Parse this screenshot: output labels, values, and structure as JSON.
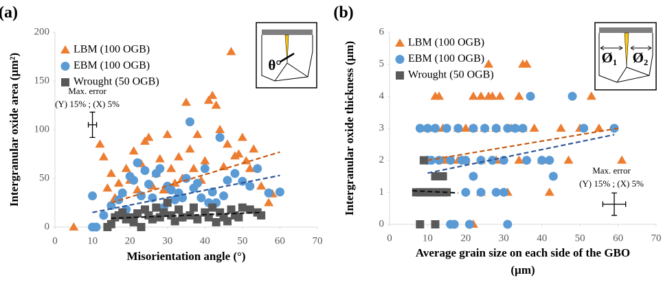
{
  "chart_data": [
    {
      "type": "scatter",
      "title": "(a)",
      "xlabel": "Misorientation angle (°)",
      "ylabel": "Intergranular oxide area (µm²)",
      "xlim": [
        0,
        70
      ],
      "xticks": [
        0,
        10,
        20,
        30,
        40,
        50,
        60,
        70
      ],
      "ylim": [
        0,
        200
      ],
      "yticks": [
        0,
        50,
        100,
        150,
        200
      ],
      "inset_labels": [
        "θ°"
      ],
      "annotation": [
        "Max. error",
        "(Y) 15% ; (X) 5%"
      ],
      "error_bar": {
        "x": 10,
        "y": 105,
        "xerr": 0.5,
        "yerr": 13
      },
      "series": [
        {
          "name": "LBM (100 OGB)",
          "color": "#ed7d31",
          "marker": "triangle",
          "x": [
            5,
            12,
            13,
            14,
            15,
            16,
            17,
            18,
            19,
            20,
            21,
            22,
            23,
            24,
            25,
            26,
            27,
            28,
            29,
            30,
            31,
            32,
            33,
            34,
            35,
            36,
            37,
            38,
            39,
            40,
            41,
            42,
            43,
            44,
            45,
            46,
            47,
            48,
            49,
            50,
            51,
            52,
            53,
            55,
            57,
            58
          ],
          "values": [
            0,
            85,
            72,
            40,
            55,
            30,
            45,
            35,
            60,
            48,
            78,
            38,
            65,
            88,
            92,
            42,
            55,
            70,
            38,
            95,
            60,
            45,
            72,
            50,
            128,
            80,
            60,
            95,
            48,
            68,
            130,
            135,
            125,
            100,
            62,
            85,
            180,
            73,
            75,
            92,
            68,
            60,
            80,
            42,
            25,
            34
          ],
          "trend": {
            "x": [
              15,
              60
            ],
            "y": [
              25,
              77
            ]
          }
        },
        {
          "name": "EBM (100 OGB)",
          "color": "#5b9bd5",
          "marker": "circle",
          "x": [
            10,
            11,
            10,
            13,
            15,
            17,
            18,
            19,
            20,
            21,
            22,
            23,
            24,
            25,
            26,
            27,
            28,
            29,
            30,
            31,
            32,
            33,
            34,
            35,
            36,
            37,
            38,
            39,
            40,
            41,
            42,
            43,
            44,
            45,
            46,
            48,
            50,
            52,
            54,
            57,
            60,
            34
          ],
          "values": [
            0,
            0,
            32,
            12,
            22,
            28,
            35,
            18,
            52,
            48,
            66,
            32,
            58,
            44,
            30,
            55,
            60,
            20,
            42,
            38,
            28,
            35,
            30,
            50,
            108,
            40,
            45,
            30,
            60,
            25,
            36,
            25,
            92,
            32,
            48,
            55,
            47,
            42,
            60,
            35,
            36,
            10
          ],
          "trend": {
            "x": [
              10,
              60
            ],
            "y": [
              15,
              53
            ]
          }
        },
        {
          "name": "Wrought (50 OGB)",
          "color": "#595959",
          "marker": "square",
          "x": [
            14,
            15,
            16,
            17,
            18,
            19,
            20,
            21,
            22,
            23,
            24,
            25,
            26,
            27,
            28,
            29,
            30,
            31,
            32,
            33,
            34,
            36,
            37,
            38,
            40,
            41,
            42,
            43,
            44,
            45,
            46,
            47,
            48,
            50,
            52,
            54,
            55,
            49
          ],
          "values": [
            0,
            3,
            10,
            12,
            15,
            8,
            10,
            5,
            14,
            0,
            18,
            12,
            8,
            20,
            10,
            15,
            25,
            12,
            6,
            18,
            10,
            12,
            20,
            8,
            15,
            10,
            20,
            5,
            15,
            10,
            6,
            18,
            12,
            20,
            18,
            15,
            12,
            10
          ],
          "trend": {
            "x": [
              15,
              55
            ],
            "y": [
              9,
              15
            ]
          }
        }
      ]
    },
    {
      "type": "scatter",
      "title": "(b)",
      "xlabel": [
        "Average grain size on each side of the GBO",
        "(µm)"
      ],
      "ylabel": "Intergranular oxide thickness (µm)",
      "xlim": [
        0,
        70
      ],
      "xticks": [
        0,
        10,
        20,
        30,
        40,
        50,
        60,
        70
      ],
      "ylim": [
        0,
        6
      ],
      "yticks": [
        0,
        1,
        2,
        3,
        4,
        5,
        6
      ],
      "inset_labels": [
        "Ø₁",
        "Ø₂"
      ],
      "annotation": [
        "Max. error",
        "(Y) 15% ; (X) 5%"
      ],
      "error_bar": {
        "x": 59,
        "y": 0.63,
        "xerr": 3,
        "yerr": 0.35
      },
      "series": [
        {
          "name": "LBM (100 OGB)",
          "color": "#ed7d31",
          "marker": "triangle",
          "x": [
            12,
            13,
            22,
            24,
            26,
            27,
            29,
            34,
            53,
            26,
            35,
            36,
            10,
            14,
            18,
            20,
            22,
            25,
            28,
            32,
            35,
            38,
            45,
            50,
            55,
            10,
            15,
            20,
            24,
            28,
            34,
            40,
            47,
            61,
            22,
            42,
            24,
            31,
            14,
            18
          ],
          "values": [
            4,
            4,
            4,
            4,
            4,
            4,
            4,
            4,
            4,
            5,
            5,
            5,
            3,
            3,
            3,
            3,
            3,
            3,
            3,
            3,
            3,
            3,
            3,
            3,
            3,
            2,
            2,
            2,
            2,
            2,
            2,
            2,
            2,
            2,
            0,
            1,
            1,
            1,
            2,
            2
          ],
          "trend": {
            "x": [
              10,
              60
            ],
            "y": [
              2,
              3
            ]
          }
        },
        {
          "name": "EBM (100 OGB)",
          "color": "#5b9bd5",
          "marker": "circle",
          "x": [
            8,
            10,
            12,
            15,
            18,
            22,
            25,
            28,
            31,
            33,
            35,
            51,
            59,
            10,
            13,
            16,
            20,
            24,
            27,
            30,
            40,
            42,
            37,
            48,
            43,
            22,
            20,
            24,
            28,
            30,
            16,
            17,
            21,
            31,
            11,
            19,
            36
          ],
          "values": [
            3,
            3,
            3,
            3,
            3,
            3,
            3,
            3,
            3,
            3,
            3,
            3,
            3,
            2,
            2,
            2,
            2,
            2,
            2,
            2,
            2,
            2,
            4,
            4,
            1.5,
            1.5,
            1,
            1,
            1,
            1,
            0,
            0,
            0,
            0,
            2,
            2,
            2
          ],
          "trend": {
            "x": [
              10,
              59
            ],
            "y": [
              1.6,
              2.8
            ]
          }
        },
        {
          "name": "Wrought (50 OGB)",
          "color": "#595959",
          "marker": "square",
          "x": [
            7,
            8,
            9,
            10,
            11,
            12,
            13,
            14,
            15,
            8,
            12,
            9,
            12,
            14
          ],
          "values": [
            1,
            1,
            1,
            1,
            1,
            1,
            1,
            1,
            1,
            0,
            0,
            2,
            1.5,
            1.5
          ],
          "trend": {
            "x": [
              6,
              18
            ],
            "y": [
              1.05,
              0.98
            ]
          }
        }
      ]
    }
  ]
}
